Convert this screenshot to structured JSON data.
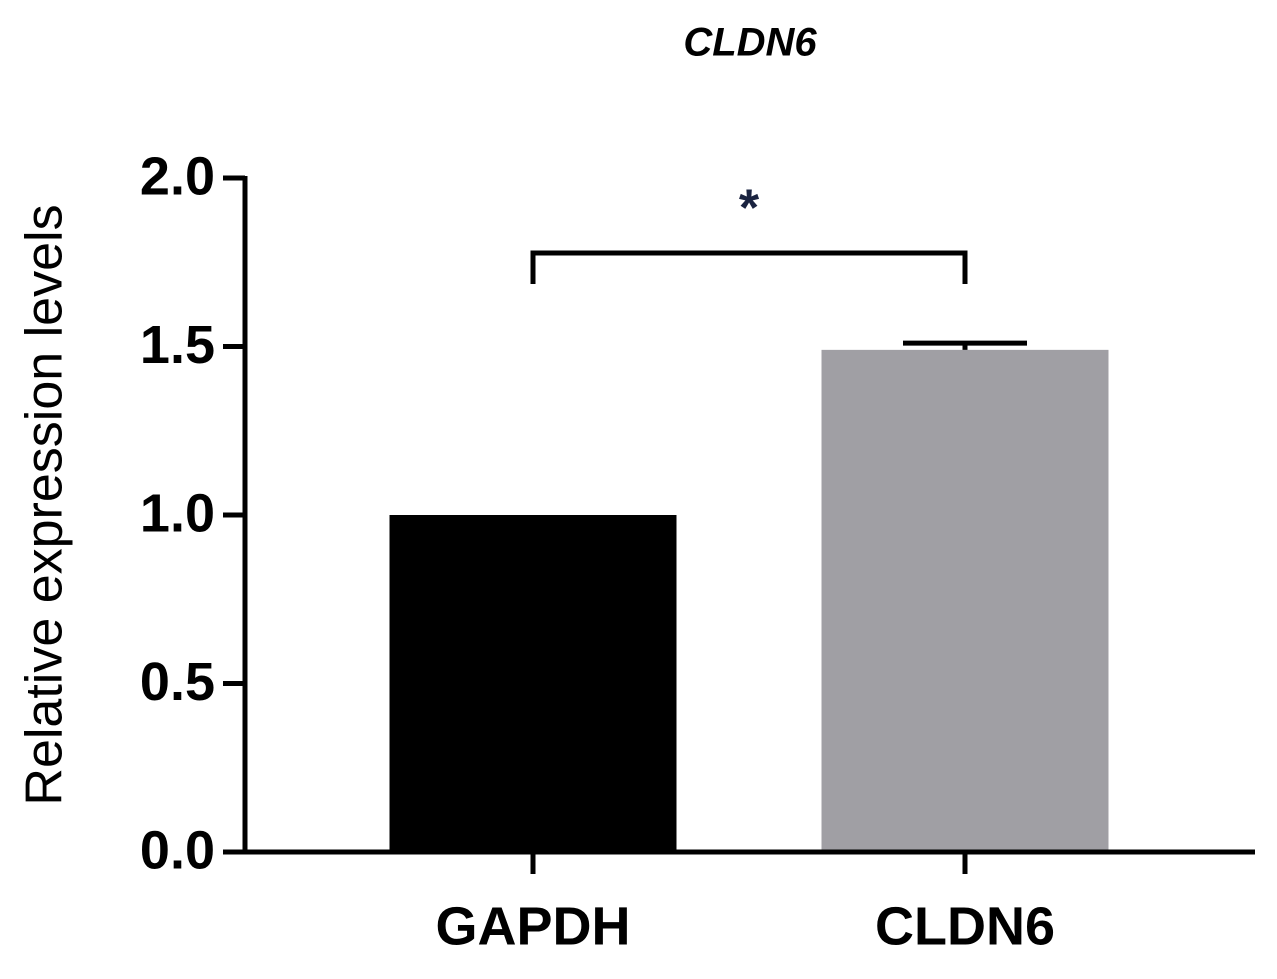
{
  "chart_data": {
    "type": "bar",
    "title": "CLDN6",
    "y_label": "Relative expression levels",
    "categories": [
      "GAPDH",
      "CLDN6"
    ],
    "values": [
      1.0,
      1.49
    ],
    "errors": [
      null,
      0.02
    ],
    "colors": [
      "#000000",
      "#a09fa4"
    ],
    "ylim": [
      0,
      2
    ],
    "yticks": [
      {
        "value": 0,
        "label": "0.0"
      },
      {
        "value": 0.5,
        "label": "0.5"
      },
      {
        "value": 1,
        "label": "1.0"
      },
      {
        "value": 1.5,
        "label": "1.5"
      },
      {
        "value": 2,
        "label": "2.0"
      }
    ],
    "grid": false,
    "annotations": [
      {
        "text": "*",
        "from": 0,
        "to": 1
      }
    ]
  }
}
